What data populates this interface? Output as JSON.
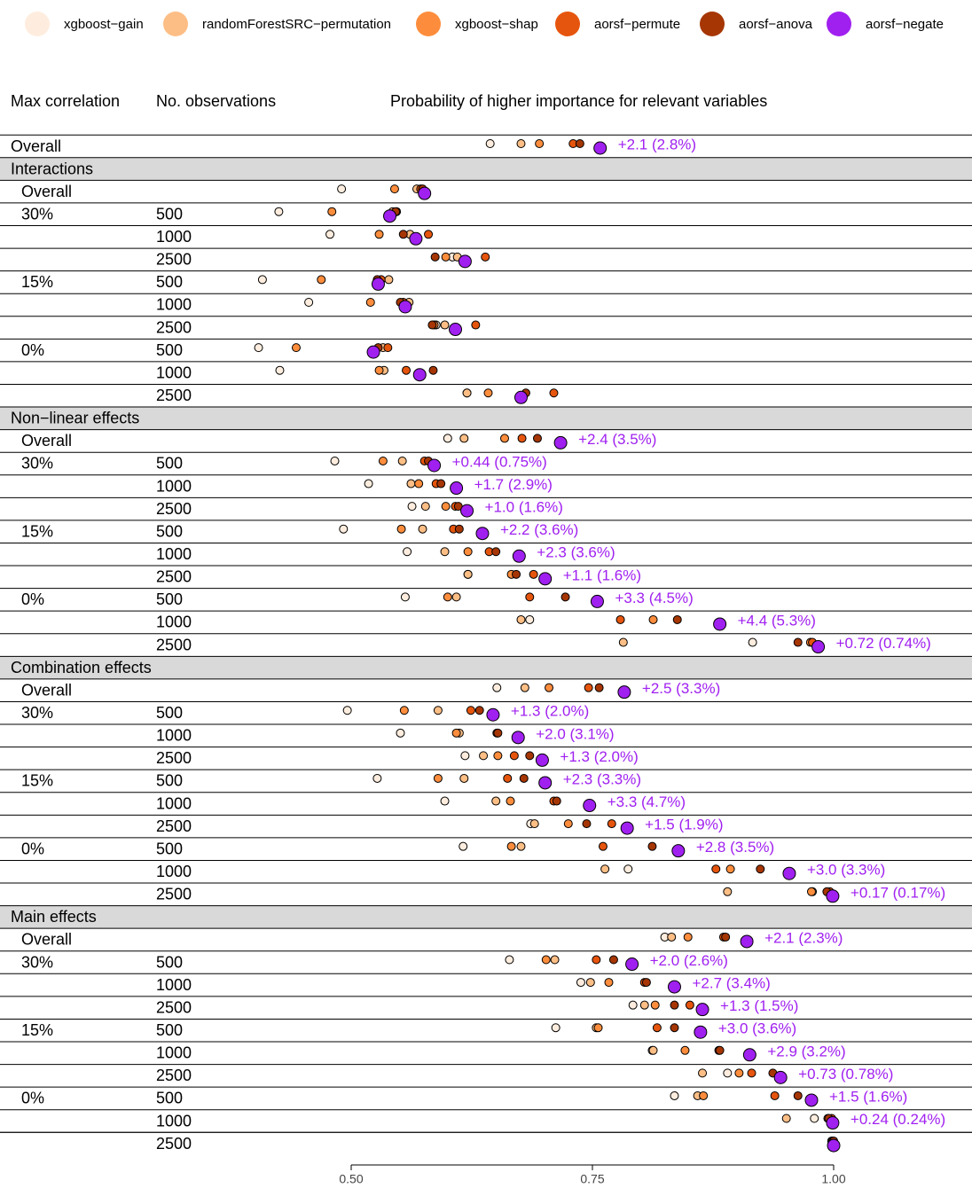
{
  "chart_data": {
    "type": "dot",
    "column_headers": [
      "Max correlation",
      "No. observations",
      "Probability of higher importance for relevant variables"
    ],
    "rows": [
      {
        "label": "Overall"
      },
      {
        "section": "Interactions"
      },
      {
        "label": "Overall"
      },
      {
        "corr": "30%",
        "n": "500"
      },
      {
        "n": "1000"
      },
      {
        "n": "2500"
      },
      {
        "corr": "15%",
        "n": "500"
      },
      {
        "n": "1000"
      },
      {
        "n": "2500"
      },
      {
        "corr": "0%",
        "n": "500"
      },
      {
        "n": "1000"
      },
      {
        "n": "2500"
      },
      {
        "section": "Non−linear effects"
      },
      {
        "label": "Overall"
      },
      {
        "corr": "30%",
        "n": "500"
      },
      {
        "n": "1000"
      },
      {
        "n": "2500"
      },
      {
        "corr": "15%",
        "n": "500"
      },
      {
        "n": "1000"
      },
      {
        "n": "2500"
      },
      {
        "corr": "0%",
        "n": "500"
      },
      {
        "n": "1000"
      },
      {
        "n": "2500"
      },
      {
        "section": "Combination effects"
      },
      {
        "label": "Overall"
      },
      {
        "corr": "30%",
        "n": "500"
      },
      {
        "n": "1000"
      },
      {
        "n": "2500"
      },
      {
        "corr": "15%",
        "n": "500"
      },
      {
        "n": "1000"
      },
      {
        "n": "2500"
      },
      {
        "corr": "0%",
        "n": "500"
      },
      {
        "n": "1000"
      },
      {
        "n": "2500"
      },
      {
        "section": "Main effects"
      },
      {
        "label": "Overall"
      },
      {
        "corr": "30%",
        "n": "500"
      },
      {
        "n": "1000"
      },
      {
        "n": "2500"
      },
      {
        "corr": "15%",
        "n": "500"
      },
      {
        "n": "1000"
      },
      {
        "n": "2500"
      },
      {
        "corr": "0%",
        "n": "500"
      },
      {
        "n": "1000"
      },
      {
        "n": "2500"
      }
    ],
    "series": [
      {
        "name": "xgboost−gain",
        "color": "#FEEDDE",
        "values": [
          0.644,
          null,
          0.49,
          0.425,
          0.478,
          0.605,
          0.408,
          0.456,
          0.588,
          0.404,
          0.426,
          0.62,
          null,
          0.6,
          0.483,
          0.518,
          0.563,
          0.492,
          0.558,
          0.621,
          0.556,
          0.685,
          0.916,
          null,
          0.651,
          0.496,
          0.551,
          0.618,
          0.527,
          0.597,
          0.686,
          0.616,
          0.787,
          0.978,
          null,
          0.825,
          0.664,
          0.738,
          0.792,
          0.712,
          0.812,
          0.89,
          0.835,
          0.98,
          0.998
        ]
      },
      {
        "name": "randomForestSRC−permutation",
        "color": "#FDBE85",
        "values": [
          0.676,
          null,
          0.568,
          0.543,
          0.561,
          0.61,
          0.539,
          0.56,
          0.597,
          0.533,
          0.534,
          0.62,
          null,
          0.617,
          0.553,
          0.562,
          0.577,
          0.574,
          0.597,
          0.621,
          0.609,
          0.676,
          0.782,
          null,
          0.68,
          0.59,
          0.612,
          0.637,
          0.617,
          0.65,
          0.69,
          0.676,
          0.763,
          0.89,
          null,
          0.832,
          0.711,
          0.748,
          0.804,
          0.754,
          0.813,
          0.864,
          0.859,
          0.951,
          0.998
        ]
      },
      {
        "name": "xgboost−shap",
        "color": "#FD8D3C",
        "values": [
          0.695,
          null,
          0.545,
          0.48,
          0.529,
          0.598,
          0.469,
          0.52,
          0.586,
          0.443,
          0.529,
          0.642,
          null,
          0.659,
          0.533,
          0.57,
          0.598,
          0.552,
          0.621,
          0.666,
          0.6,
          0.813,
          0.976,
          null,
          0.705,
          0.555,
          0.609,
          0.652,
          0.59,
          0.665,
          0.725,
          0.666,
          0.893,
          0.977,
          null,
          0.849,
          0.702,
          0.767,
          0.815,
          0.756,
          0.846,
          0.902,
          0.865,
          0.994,
          0.999
        ]
      },
      {
        "name": "aorsf−permute",
        "color": "#E6550D",
        "values": [
          0.73,
          null,
          0.572,
          0.547,
          0.58,
          0.639,
          0.531,
          0.554,
          0.629,
          0.538,
          0.557,
          0.71,
          null,
          0.677,
          0.576,
          0.588,
          0.608,
          0.606,
          0.643,
          0.689,
          0.685,
          0.779,
          0.978,
          null,
          0.746,
          0.624,
          0.651,
          0.669,
          0.662,
          0.71,
          0.77,
          0.761,
          0.878,
          0.996,
          null,
          0.886,
          0.754,
          0.804,
          0.851,
          0.817,
          0.881,
          0.915,
          0.939,
          0.998,
          1.0
        ]
      },
      {
        "name": "aorsf−anova",
        "color": "#A63603",
        "values": [
          0.737,
          null,
          0.574,
          0.546,
          0.554,
          0.587,
          0.527,
          0.551,
          0.584,
          0.528,
          0.585,
          0.681,
          null,
          0.693,
          0.58,
          0.593,
          0.611,
          0.612,
          0.65,
          0.671,
          0.722,
          0.838,
          0.963,
          null,
          0.757,
          0.633,
          0.652,
          0.685,
          0.679,
          0.713,
          0.744,
          0.812,
          0.924,
          0.993,
          null,
          0.888,
          0.772,
          0.806,
          0.835,
          0.835,
          0.882,
          0.937,
          0.963,
          0.995,
          1.0
        ]
      },
      {
        "name": "aorsf−negate",
        "color": "#A020F0",
        "values": [
          0.758,
          null,
          0.576,
          0.54,
          0.567,
          0.618,
          0.528,
          0.556,
          0.608,
          0.523,
          0.571,
          0.676,
          null,
          0.717,
          0.586,
          0.609,
          0.62,
          0.636,
          0.674,
          0.701,
          0.755,
          0.882,
          0.984,
          null,
          0.783,
          0.647,
          0.673,
          0.698,
          0.701,
          0.747,
          0.786,
          0.839,
          0.954,
          0.999,
          null,
          0.91,
          0.791,
          0.835,
          0.864,
          0.862,
          0.913,
          0.945,
          0.977,
          0.999,
          1.0
        ]
      }
    ],
    "annotations": [
      "+2.1 (2.8%)",
      null,
      null,
      null,
      null,
      null,
      null,
      null,
      null,
      null,
      null,
      null,
      null,
      "+2.4 (3.5%)",
      "+0.44 (0.75%)",
      "+1.7 (2.9%)",
      "+1.0 (1.6%)",
      "+2.2 (3.6%)",
      "+2.3 (3.6%)",
      "+1.1 (1.6%)",
      "+3.3 (4.5%)",
      "+4.4 (5.3%)",
      "+0.72 (0.74%)",
      null,
      "+2.5 (3.3%)",
      "+1.3 (2.0%)",
      "+2.0 (3.1%)",
      "+1.3 (2.0%)",
      "+2.3 (3.3%)",
      "+3.3 (4.7%)",
      "+1.5 (1.9%)",
      "+2.8 (3.5%)",
      "+3.0 (3.3%)",
      "+0.17 (0.17%)",
      null,
      "+2.1 (2.3%)",
      "+2.0 (2.6%)",
      "+2.7 (3.4%)",
      "+1.3 (1.5%)",
      "+3.0 (3.6%)",
      "+2.9 (3.2%)",
      "+0.73 (0.78%)",
      "+1.5 (1.6%)",
      "+0.24 (0.24%)",
      null
    ],
    "xlim": [
      0.5,
      1.0
    ],
    "xticks": [
      {
        "value": 0.5,
        "label": "0.50"
      },
      {
        "value": 0.75,
        "label": "0.75"
      },
      {
        "value": 1.0,
        "label": "1.00"
      }
    ],
    "legend": "top"
  }
}
